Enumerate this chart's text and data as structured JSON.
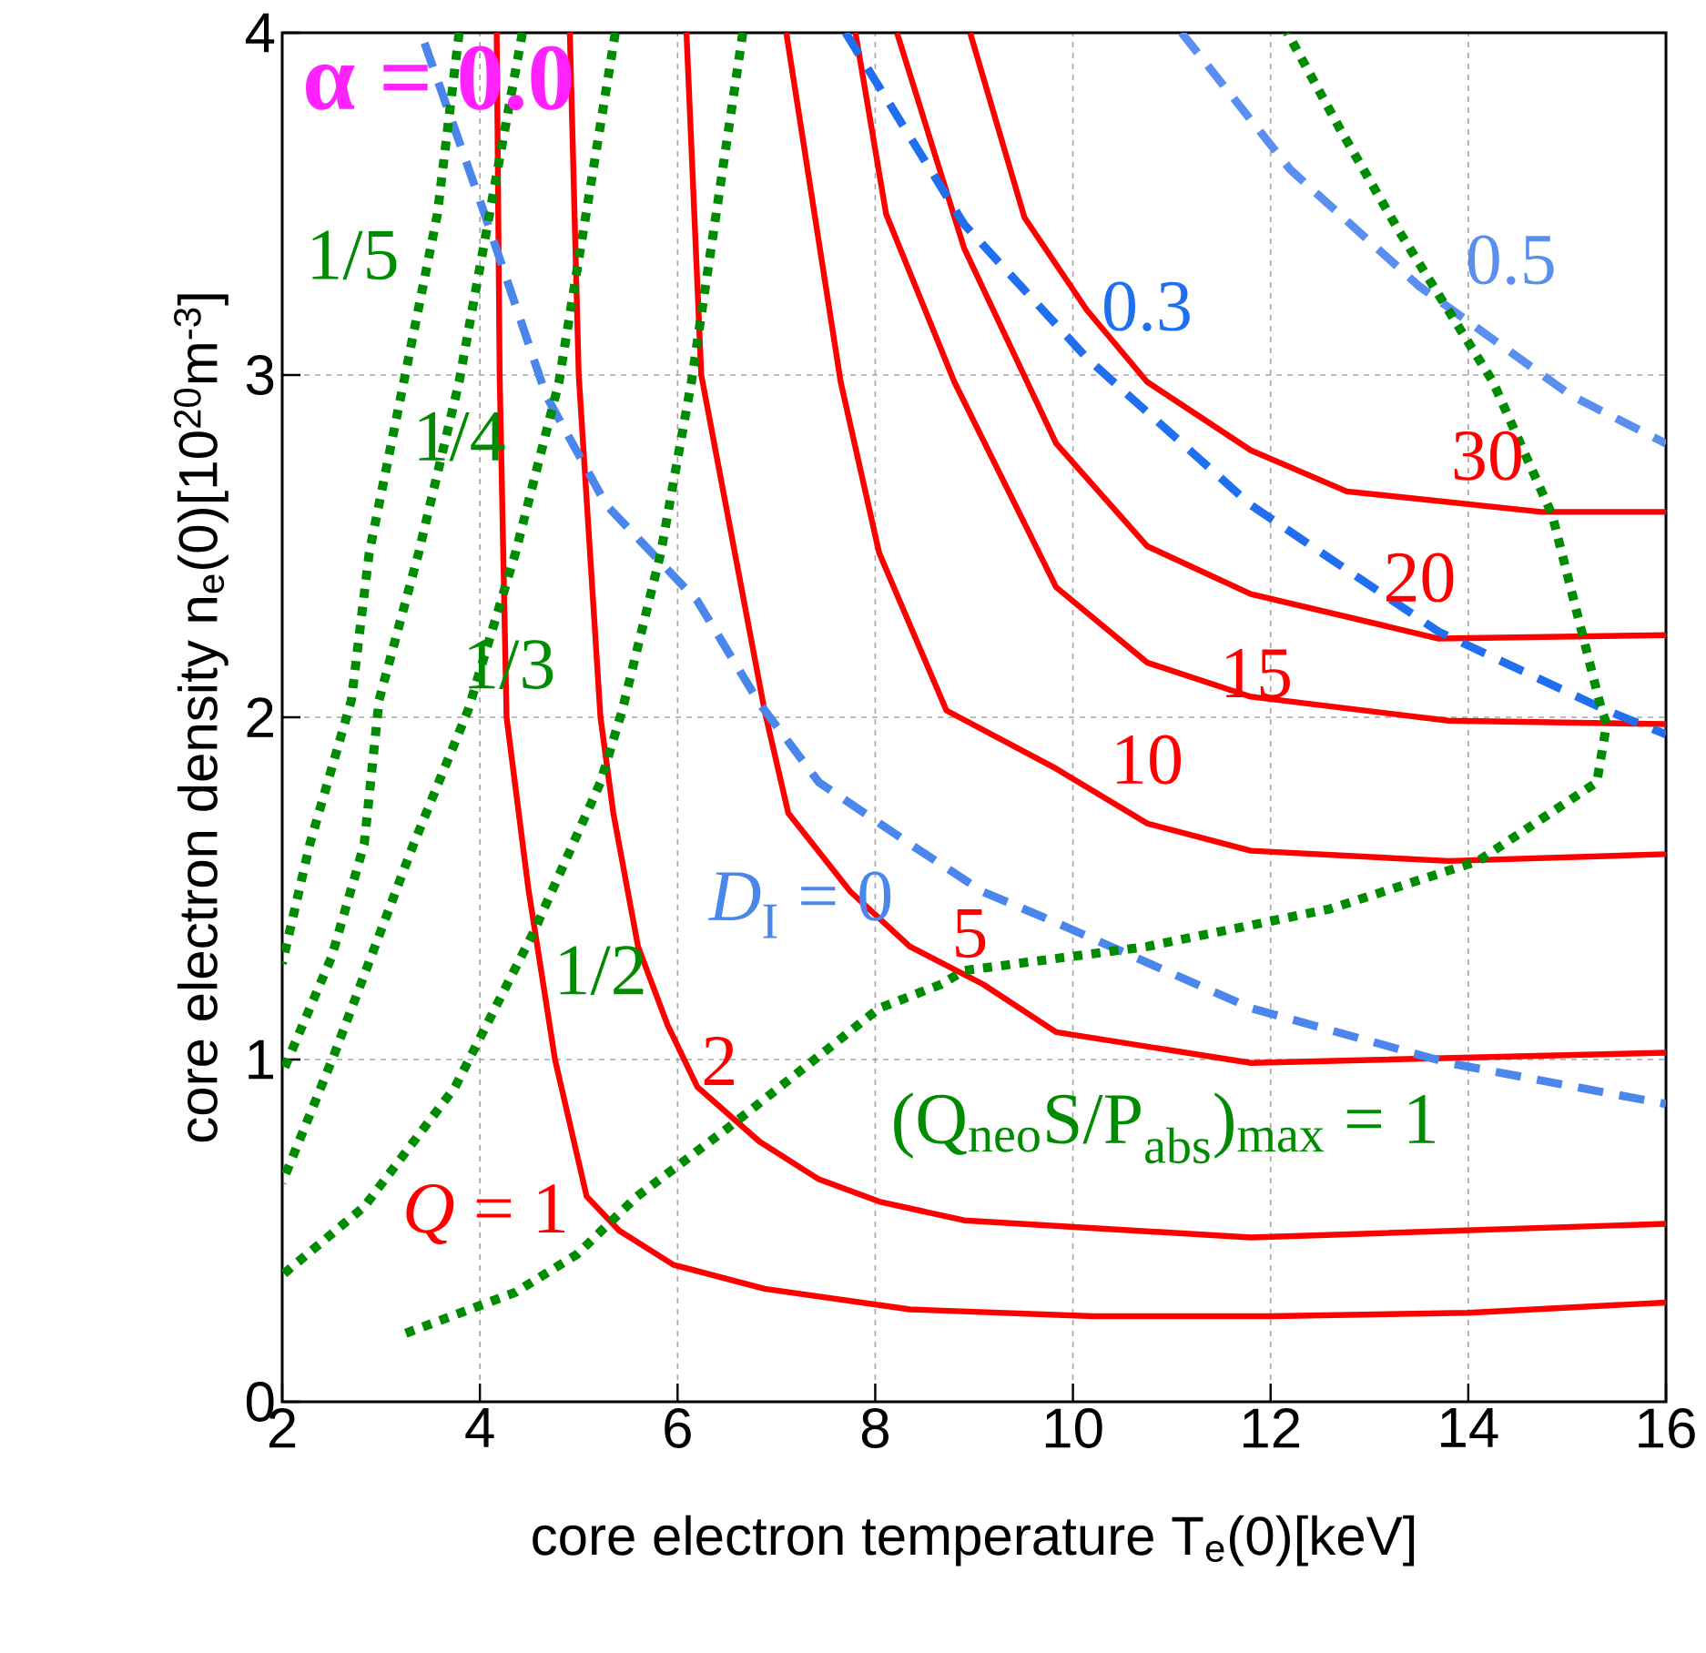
{
  "chart_data": {
    "type": "line",
    "xlabel": "core electron temperature T$_{e}$(0)[keV]",
    "ylabel": "core electron density n$_{e}$(0)[10$^{20}$m$^{-3}$]",
    "xlim": [
      2,
      16
    ],
    "ylim": [
      0,
      4
    ],
    "xticks": [
      2,
      4,
      6,
      8,
      10,
      12,
      14,
      16
    ],
    "yticks": [
      0,
      1,
      2,
      3,
      4
    ],
    "grid": true,
    "marker": "none",
    "series": [
      {
        "color": "#ff0000",
        "line_style": "solid",
        "x": [
          4.17,
          4.2,
          4.27,
          4.49,
          4.76,
          5.08,
          5.41,
          5.96,
          6.88,
          8.35,
          10.2,
          12,
          14,
          16
        ],
        "values": [
          4,
          3,
          2,
          1.5,
          1,
          0.6,
          0.5,
          0.4,
          0.33,
          0.27,
          0.25,
          0.25,
          0.26,
          0.29
        ]
      },
      {
        "color": "#ff0000",
        "line_style": "solid",
        "x": [
          4.91,
          5.0,
          5.22,
          5.35,
          5.6,
          5.9,
          6.2,
          6.83,
          7.43,
          8.04,
          8.9,
          11.8,
          16
        ],
        "values": [
          4,
          3,
          2,
          1.72,
          1.33,
          1.1,
          0.92,
          0.76,
          0.65,
          0.585,
          0.53,
          0.48,
          0.52
        ]
      },
      {
        "color": "#ff0000",
        "line_style": "solid",
        "x": [
          6.09,
          6.24,
          6.88,
          7.12,
          7.75,
          8.35,
          9.09,
          9.83,
          11.8,
          16
        ],
        "values": [
          4,
          3,
          2.02,
          1.72,
          1.49,
          1.33,
          1.22,
          1.08,
          0.99,
          1.02
        ]
      },
      {
        "color": "#ff0000",
        "line_style": "solid",
        "x": [
          7.1,
          7.65,
          8.04,
          8.72,
          9.83,
          10.75,
          11.8,
          13.8,
          16
        ],
        "values": [
          4,
          2.98,
          2.48,
          2.02,
          1.85,
          1.69,
          1.61,
          1.58,
          1.6
        ]
      },
      {
        "color": "#ff0000",
        "line_style": "solid",
        "x": [
          7.8,
          8.11,
          8.8,
          9.83,
          10.75,
          11.8,
          13.8,
          16
        ],
        "values": [
          4,
          3.47,
          2.98,
          2.38,
          2.16,
          2.06,
          1.99,
          1.98
        ]
      },
      {
        "color": "#ff0000",
        "line_style": "solid",
        "x": [
          8.22,
          8.9,
          9.83,
          10.75,
          11.8,
          13.7,
          16
        ],
        "values": [
          4,
          3.37,
          2.8,
          2.5,
          2.36,
          2.23,
          2.24
        ]
      },
      {
        "color": "#ff0000",
        "line_style": "solid",
        "x": [
          8.96,
          9.51,
          10.14,
          10.75,
          11.8,
          12.77,
          14.74,
          16
        ],
        "values": [
          4,
          3.46,
          3.19,
          2.98,
          2.78,
          2.66,
          2.6,
          2.6
        ]
      },
      {
        "color": "#4a86ec",
        "line_style": "dashed",
        "x": [
          3.44,
          4.06,
          4.67,
          5.28,
          6.2,
          6.83,
          7.43,
          8.35,
          9.09,
          9.83,
          11.8,
          13.8,
          16
        ],
        "values": [
          3.97,
          3.46,
          2.94,
          2.62,
          2.34,
          2.04,
          1.81,
          1.63,
          1.49,
          1.4,
          1.15,
          0.99,
          0.87
        ]
      },
      {
        "color": "#1f6ff0",
        "line_style": "dashed",
        "x": [
          7.7,
          8.9,
          10.14,
          11.8,
          13.7,
          15.4,
          16
        ],
        "values": [
          4,
          3.44,
          3.05,
          2.62,
          2.25,
          2.02,
          1.95
        ]
      },
      {
        "color": "#5a8ff0",
        "line_style": "dashed",
        "x": [
          11.1,
          12.2,
          13.5,
          15.04,
          16
        ],
        "values": [
          4,
          3.6,
          3.26,
          2.94,
          2.8
        ]
      },
      {
        "color": "#008c00",
        "line_style": "dotted",
        "x": [
          3.79,
          3.57,
          3.23,
          2.88,
          2.7,
          2.28,
          2
        ],
        "values": [
          4,
          3.47,
          2.98,
          2.48,
          2.05,
          1.63,
          1.28
        ]
      },
      {
        "color": "#008c00",
        "line_style": "dotted",
        "x": [
          4.43,
          3.79,
          3.38,
          2.98,
          2.83,
          2.5,
          2
        ],
        "values": [
          4,
          2.98,
          2.48,
          2.05,
          1.63,
          1.3,
          0.96
        ]
      },
      {
        "color": "#008c00",
        "line_style": "dotted",
        "x": [
          5.37,
          4.8,
          4.36,
          3.88,
          3.33,
          2.52,
          2
        ],
        "values": [
          4,
          2.98,
          2.48,
          2.02,
          1.63,
          1.01,
          0.64
        ]
      },
      {
        "color": "#008c00",
        "line_style": "dotted",
        "x": [
          6.66,
          6.14,
          5.83,
          5.44,
          5.22,
          4.54,
          3.75,
          2.83,
          2
        ],
        "values": [
          4,
          2.98,
          2.48,
          2.02,
          1.81,
          1.37,
          0.92,
          0.57,
          0.37
        ]
      },
      {
        "color": "#008c00",
        "line_style": "dotted",
        "x": [
          3.25,
          4.36,
          4.98,
          5.59,
          6.51,
          7.43,
          8.04,
          8.67,
          8.9,
          10.75,
          12.6,
          14.1,
          15.3,
          15.4,
          15.35,
          14.85,
          14.25,
          13.3,
          12.7,
          12.17
        ],
        "values": [
          0.2,
          0.32,
          0.43,
          0.6,
          0.8,
          1.01,
          1.15,
          1.22,
          1.26,
          1.33,
          1.44,
          1.58,
          1.81,
          1.98,
          2.02,
          2.59,
          2.98,
          3.42,
          3.72,
          4
        ]
      }
    ],
    "annotations": [
      "*Q* = 1",
      "2",
      "5",
      "10",
      "15",
      "20",
      "30",
      "*D*$_{I}$ = 0",
      "0.3",
      "0.5",
      "1/5",
      "1/4",
      "1/3",
      "1/2",
      "(Q$_{neo}$S/P$_{abs}$)$_{max}$ = 1",
      "α = 0.0"
    ]
  }
}
